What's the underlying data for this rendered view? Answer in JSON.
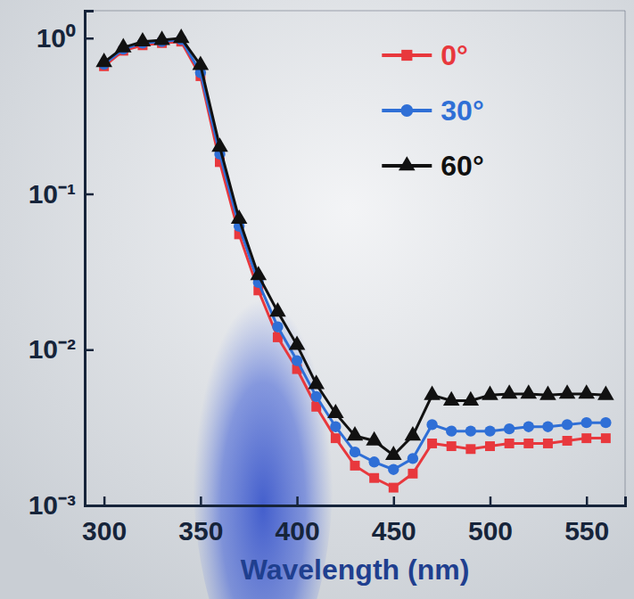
{
  "chart_data": {
    "type": "line",
    "xlabel": "Wavelength (nm)",
    "log": "y",
    "grid": false,
    "legend": "upper right",
    "x": [
      300,
      310,
      320,
      330,
      340,
      350,
      360,
      370,
      380,
      390,
      400,
      410,
      420,
      430,
      440,
      450,
      460,
      470,
      480,
      490,
      500,
      510,
      520,
      530,
      540,
      550,
      560
    ],
    "xlim": [
      290,
      570
    ],
    "xticks": [
      300,
      350,
      400,
      450,
      500,
      550
    ],
    "ylim": [
      0.001,
      1.5
    ],
    "yticks": [
      {
        "value": 0.001,
        "label": "10⁻³"
      },
      {
        "value": 0.01,
        "label": "10⁻²"
      },
      {
        "value": 0.1,
        "label": "10⁻¹"
      },
      {
        "value": 1,
        "label": "10⁰"
      }
    ],
    "series": [
      {
        "name": "0°",
        "color": "#e8383d",
        "marker": "square",
        "line_style": "solid",
        "values": [
          0.66,
          0.83,
          0.9,
          0.93,
          0.95,
          0.57,
          0.16,
          0.055,
          0.024,
          0.012,
          0.0075,
          0.0043,
          0.0027,
          0.0018,
          0.0015,
          0.0013,
          0.0016,
          0.0025,
          0.0024,
          0.0023,
          0.0024,
          0.0025,
          0.0025,
          0.0025,
          0.0026,
          0.0027,
          0.0027
        ]
      },
      {
        "name": "30°",
        "color": "#2f6fd6",
        "marker": "circle",
        "line_style": "solid",
        "values": [
          0.68,
          0.85,
          0.93,
          0.95,
          0.98,
          0.6,
          0.18,
          0.062,
          0.027,
          0.014,
          0.0085,
          0.005,
          0.0032,
          0.0022,
          0.0019,
          0.0017,
          0.002,
          0.0033,
          0.003,
          0.003,
          0.003,
          0.0031,
          0.0032,
          0.0032,
          0.0033,
          0.0034,
          0.0034
        ]
      },
      {
        "name": "60°",
        "color": "#111111",
        "marker": "triangle",
        "line_style": "solid",
        "values": [
          0.7,
          0.87,
          0.95,
          0.97,
          1.0,
          0.67,
          0.2,
          0.069,
          0.03,
          0.0175,
          0.0107,
          0.006,
          0.0039,
          0.0028,
          0.0026,
          0.0021,
          0.0028,
          0.0051,
          0.0047,
          0.0047,
          0.0051,
          0.0052,
          0.0052,
          0.0051,
          0.0052,
          0.0052,
          0.0051
        ]
      }
    ]
  }
}
